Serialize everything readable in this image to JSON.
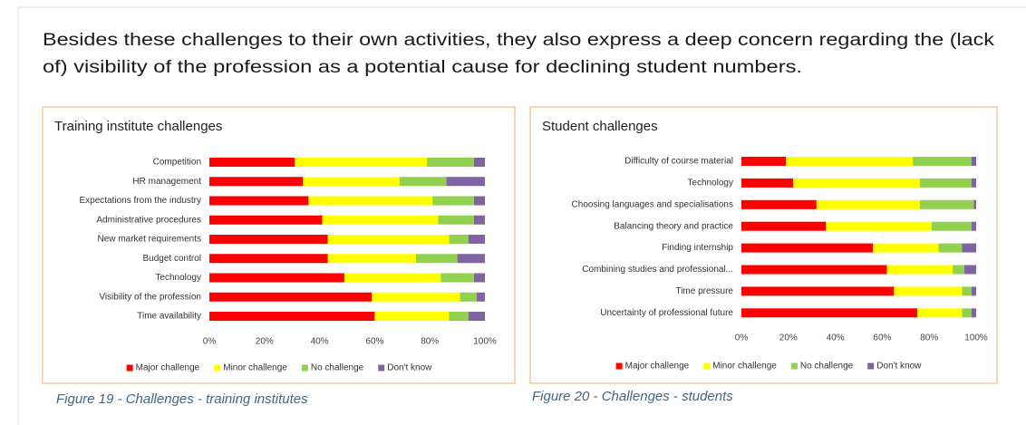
{
  "paragraph": [
    "Besides these challenges to their own activities, they also express a deep concern regarding the (lack",
    "of) visibility of the profession as a potential cause for declining student numbers."
  ],
  "chart_data": [
    {
      "type": "stacked-barh",
      "title": "Training institute challenges",
      "categories": [
        "Competition",
        "HR management",
        "Expectations from the industry",
        "Administrative procedures",
        "New market requirements",
        "Budget control",
        "Technology",
        "Visibility of the profession",
        "Time availability"
      ],
      "series": [
        {
          "name": "Major challenge",
          "color": "#ff0000",
          "values": [
            31,
            34,
            36,
            41,
            43,
            43,
            49,
            59,
            60
          ]
        },
        {
          "name": "Minor challenge",
          "color": "#ffff00",
          "values": [
            48,
            35,
            45,
            42,
            44,
            32,
            35,
            32,
            27
          ]
        },
        {
          "name": "No challenge",
          "color": "#92d050",
          "values": [
            17,
            17,
            15,
            13,
            7,
            15,
            12,
            6,
            7
          ]
        },
        {
          "name": "Don't know",
          "color": "#8064a2",
          "values": [
            4,
            14,
            4,
            4,
            6,
            10,
            4,
            3,
            6
          ]
        }
      ],
      "xlim": [
        0,
        100
      ],
      "xticks": [
        {
          "value": 0,
          "label": "0%"
        },
        {
          "value": 20,
          "label": "20%"
        },
        {
          "value": 40,
          "label": "40%"
        },
        {
          "value": 60,
          "label": "60%"
        },
        {
          "value": 80,
          "label": "80%"
        },
        {
          "value": 100,
          "label": "100%"
        }
      ],
      "legend": "bottom",
      "caption": "Figure 19 - Challenges - training institutes"
    },
    {
      "type": "stacked-barh",
      "title": "Student challenges",
      "categories": [
        "Difficulty of course material",
        "Technology",
        "Choosing languages and specialisations",
        "Balancing theory and practice",
        "Finding internship",
        "Combining studies and professional...",
        "Time pressure",
        "Uncertainty of professional future"
      ],
      "series": [
        {
          "name": "Major challenge",
          "color": "#ff0000",
          "values": [
            19,
            22,
            32,
            36,
            56,
            62,
            65,
            75
          ]
        },
        {
          "name": "Minor challenge",
          "color": "#ffff00",
          "values": [
            54,
            54,
            44,
            45,
            28,
            28,
            29,
            19
          ]
        },
        {
          "name": "No challenge",
          "color": "#92d050",
          "values": [
            25,
            22,
            23,
            17,
            10,
            5,
            4,
            4
          ]
        },
        {
          "name": "Don't know",
          "color": "#8064a2",
          "values": [
            2,
            2,
            1,
            2,
            6,
            5,
            2,
            2
          ]
        }
      ],
      "xlim": [
        0,
        100
      ],
      "xticks": [
        {
          "value": 0,
          "label": "0%"
        },
        {
          "value": 20,
          "label": "20%"
        },
        {
          "value": 40,
          "label": "40%"
        },
        {
          "value": 60,
          "label": "60%"
        },
        {
          "value": 80,
          "label": "80%"
        },
        {
          "value": 100,
          "label": "100%"
        }
      ],
      "legend": "bottom",
      "caption": "Figure 20 - Challenges - students"
    }
  ]
}
